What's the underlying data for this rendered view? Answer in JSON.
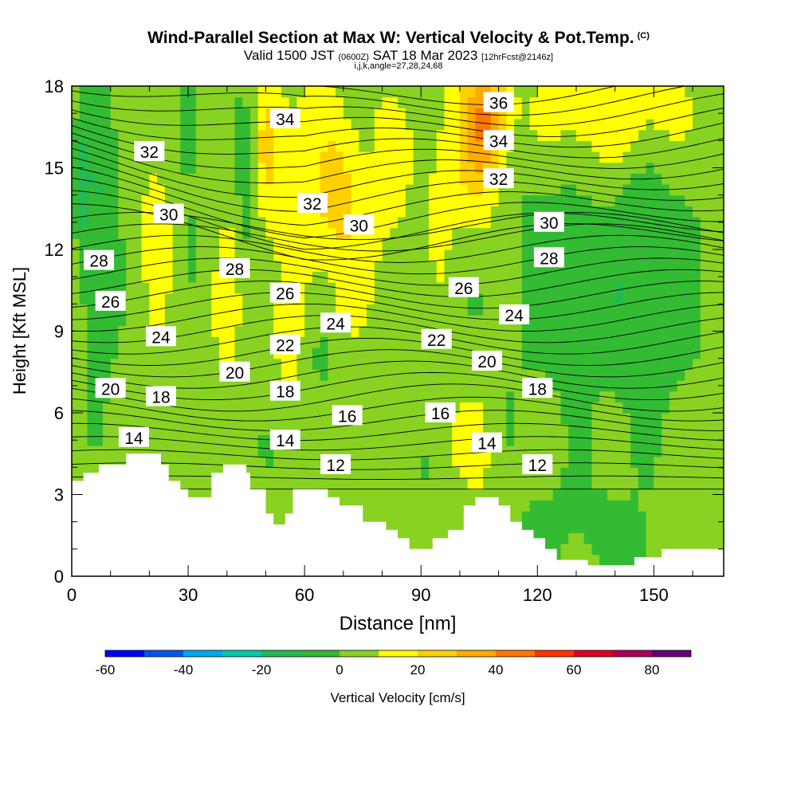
{
  "title": {
    "main": "Wind-Parallel Section at Max W: Vertical Velocity & Pot.Temp.",
    "unit_tag": "(C)",
    "sub_prefix": "Valid 1500 JST",
    "sub_small1": "(0600Z)",
    "sub_mid": "SAT 18 Mar 2023",
    "sub_small2": "[12hrFcst@2146z]",
    "indices": "i,j,k,angle=27,28,24,68"
  },
  "chart_data": {
    "type": "heatmap",
    "xlabel": "Distance [nm]",
    "ylabel": "Height [Kft MSL]",
    "xlim": [
      0,
      168
    ],
    "ylim": [
      0,
      18
    ],
    "xticks": [
      0,
      30,
      60,
      90,
      120,
      150
    ],
    "yticks": [
      0,
      3,
      6,
      9,
      12,
      15,
      18
    ],
    "colorbar": {
      "label": "Vertical Velocity [cm/s]",
      "levels": [
        -60,
        -50,
        -40,
        -30,
        -20,
        -10,
        0,
        10,
        20,
        30,
        40,
        50,
        60,
        70,
        80,
        90
      ],
      "ticks": [
        -60,
        -40,
        -20,
        0,
        20,
        40,
        60,
        80
      ],
      "colors": [
        "#0000ff",
        "#0055ee",
        "#00aaee",
        "#00ccaa",
        "#22bb55",
        "#33bb33",
        "#88d222",
        "#ffff00",
        "#ffd000",
        "#ffaa00",
        "#ff7700",
        "#ff3300",
        "#dd0022",
        "#aa0055",
        "#660077"
      ]
    },
    "theta_labels": [
      {
        "text": "36",
        "x": 110,
        "y": 17.4
      },
      {
        "text": "34",
        "x": 55,
        "y": 16.8
      },
      {
        "text": "34",
        "x": 110,
        "y": 16.0
      },
      {
        "text": "32",
        "x": 20,
        "y": 15.6
      },
      {
        "text": "32",
        "x": 110,
        "y": 14.6
      },
      {
        "text": "32",
        "x": 62,
        "y": 13.7
      },
      {
        "text": "30",
        "x": 25,
        "y": 13.3
      },
      {
        "text": "30",
        "x": 74,
        "y": 12.9
      },
      {
        "text": "30",
        "x": 123,
        "y": 13.0
      },
      {
        "text": "28",
        "x": 7,
        "y": 11.6
      },
      {
        "text": "28",
        "x": 42,
        "y": 11.3
      },
      {
        "text": "28",
        "x": 123,
        "y": 11.7
      },
      {
        "text": "26",
        "x": 55,
        "y": 10.4
      },
      {
        "text": "26",
        "x": 101,
        "y": 10.6
      },
      {
        "text": "26",
        "x": 10,
        "y": 10.1
      },
      {
        "text": "24",
        "x": 23,
        "y": 8.8
      },
      {
        "text": "24",
        "x": 68,
        "y": 9.3
      },
      {
        "text": "24",
        "x": 114,
        "y": 9.6
      },
      {
        "text": "22",
        "x": 55,
        "y": 8.5
      },
      {
        "text": "22",
        "x": 94,
        "y": 8.7
      },
      {
        "text": "20",
        "x": 10,
        "y": 6.9
      },
      {
        "text": "20",
        "x": 42,
        "y": 7.5
      },
      {
        "text": "20",
        "x": 107,
        "y": 7.9
      },
      {
        "text": "18",
        "x": 23,
        "y": 6.6
      },
      {
        "text": "18",
        "x": 55,
        "y": 6.8
      },
      {
        "text": "18",
        "x": 120,
        "y": 6.9
      },
      {
        "text": "16",
        "x": 71,
        "y": 5.9
      },
      {
        "text": "16",
        "x": 95,
        "y": 6.0
      },
      {
        "text": "14",
        "x": 16,
        "y": 5.1
      },
      {
        "text": "14",
        "x": 55,
        "y": 5.0
      },
      {
        "text": "14",
        "x": 107,
        "y": 4.9
      },
      {
        "text": "12",
        "x": 68,
        "y": 4.1
      },
      {
        "text": "12",
        "x": 120,
        "y": 4.1
      }
    ],
    "terrain": [
      [
        0,
        3.5
      ],
      [
        3,
        3.5
      ],
      [
        3,
        3.8
      ],
      [
        7,
        3.8
      ],
      [
        7,
        4.1
      ],
      [
        14,
        4.1
      ],
      [
        14,
        4.5
      ],
      [
        23,
        4.5
      ],
      [
        23,
        4.1
      ],
      [
        25,
        4.1
      ],
      [
        25,
        3.5
      ],
      [
        28,
        3.5
      ],
      [
        28,
        3.2
      ],
      [
        30,
        3.2
      ],
      [
        30,
        2.9
      ],
      [
        36,
        2.9
      ],
      [
        36,
        3.8
      ],
      [
        39,
        3.8
      ],
      [
        39,
        4.1
      ],
      [
        45,
        4.1
      ],
      [
        45,
        3.8
      ],
      [
        46,
        3.8
      ],
      [
        46,
        3.2
      ],
      [
        50,
        3.2
      ],
      [
        50,
        2.3
      ],
      [
        52,
        2.3
      ],
      [
        52,
        1.9
      ],
      [
        55,
        1.9
      ],
      [
        55,
        2.3
      ],
      [
        57,
        2.3
      ],
      [
        57,
        3.2
      ],
      [
        66,
        3.2
      ],
      [
        66,
        2.9
      ],
      [
        69,
        2.9
      ],
      [
        69,
        2.6
      ],
      [
        75,
        2.6
      ],
      [
        75,
        2.0
      ],
      [
        81,
        2.0
      ],
      [
        81,
        1.7
      ],
      [
        84,
        1.7
      ],
      [
        84,
        1.4
      ],
      [
        87,
        1.4
      ],
      [
        87,
        1.0
      ],
      [
        93,
        1.0
      ],
      [
        93,
        1.4
      ],
      [
        97,
        1.4
      ],
      [
        97,
        1.7
      ],
      [
        101,
        1.7
      ],
      [
        101,
        2.6
      ],
      [
        104,
        2.6
      ],
      [
        104,
        2.9
      ],
      [
        110,
        2.9
      ],
      [
        110,
        2.6
      ],
      [
        113,
        2.6
      ],
      [
        113,
        2.0
      ],
      [
        116,
        2.0
      ],
      [
        116,
        1.7
      ],
      [
        119,
        1.7
      ],
      [
        119,
        1.4
      ],
      [
        122,
        1.4
      ],
      [
        122,
        1.0
      ],
      [
        125,
        1.0
      ],
      [
        125,
        0.6
      ],
      [
        133,
        0.6
      ],
      [
        133,
        0.4
      ],
      [
        145,
        0.4
      ],
      [
        145,
        0.7
      ],
      [
        152,
        0.7
      ],
      [
        152,
        1.0
      ],
      [
        168,
        1.0
      ]
    ]
  }
}
